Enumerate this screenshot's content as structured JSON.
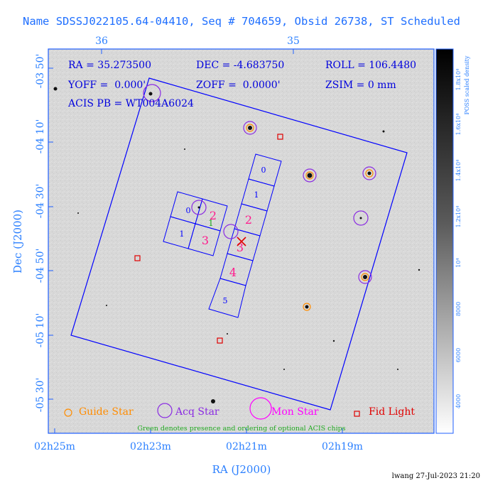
{
  "header": {
    "title": "Name SDSSJ022105.64-04410, Seq # 704659, Obsid 26738, ST Scheduled"
  },
  "parameters": {
    "ra": "RA = 35.273500",
    "dec": "DEC = -4.683750",
    "roll": "ROLL = 106.4480",
    "yoff": "YOFF =  0.000'",
    "zoff": "ZOFF =  0.0000'",
    "zsim": "ZSIM = 0 mm",
    "acis_pb": "ACIS PB = WT004A6024"
  },
  "axes": {
    "top_ticks": [
      "36",
      "35"
    ],
    "left_ticks": [
      "-03 50'",
      "-04 10'",
      "-04 30'",
      "-04 50'",
      "-05 10'",
      "-05 30'"
    ],
    "bottom_ticks": [
      "02h25m",
      "02h23m",
      "02h21m",
      "02h19m"
    ],
    "xlabel": "RA (J2000)",
    "ylabel": "Dec (J2000)"
  },
  "colorbar": {
    "label": "POSS scaled density",
    "ticks": [
      "1.8x10⁴",
      "1.6x10⁴",
      "1.4x10⁴",
      "1.2x10⁴",
      "10⁴",
      "8000",
      "6000",
      "4000"
    ]
  },
  "ccds": {
    "acis_i_labels": [
      "0",
      "2",
      "1",
      "3"
    ],
    "acis_s_labels": [
      "0",
      "1",
      "2",
      "3",
      "4",
      "5"
    ],
    "optional_marker": "1"
  },
  "legend": {
    "guide_star": "Guide Star",
    "acq_star": "Acq Star",
    "mon_star": "Mon Star",
    "fid_light": "Fid Light",
    "note": "Green denotes presence and ordering of optional ACIS chips"
  },
  "footer": {
    "stamp": "lwang 27-Jul-2023 21:20"
  },
  "colors": {
    "frame_blue": "#1f5fff",
    "text_blue": "#2a7fff",
    "param_blue": "#0000dd",
    "ccd_blue": "#0000ff",
    "chip_magenta": "#ff1a8c",
    "guide_orange": "#ff8c00",
    "acq_purple": "#8a2be2",
    "mon_magenta": "#ff00ff",
    "fid_red": "#e00000",
    "optional_green": "#22aa22"
  }
}
